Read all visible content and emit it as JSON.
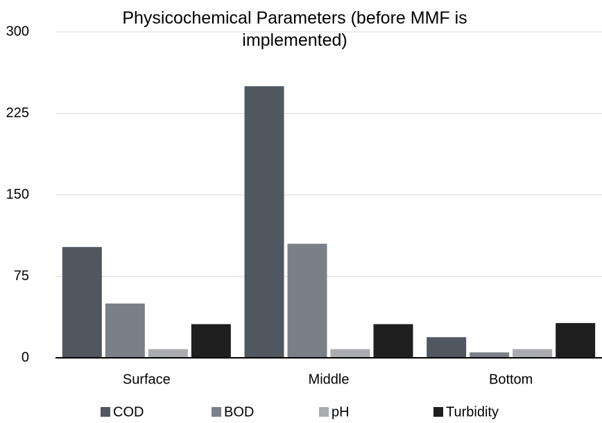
{
  "chart_data": {
    "type": "bar",
    "title": "Physicochemical Parameters (before MMF is implemented)",
    "categories": [
      "Surface",
      "Middle",
      "Bottom"
    ],
    "series": [
      {
        "name": "COD",
        "color": "#50575f",
        "values": [
          102,
          250,
          19
        ]
      },
      {
        "name": "BOD",
        "color": "#7a7f88",
        "values": [
          50,
          105,
          5
        ]
      },
      {
        "name": "pH",
        "color": "#a9abae",
        "values": [
          8,
          8,
          8
        ]
      },
      {
        "name": "Turbidity",
        "color": "#1f1f1f",
        "values": [
          31,
          31,
          32
        ]
      }
    ],
    "ylim": [
      0,
      300
    ],
    "yticks": [
      0,
      75,
      150,
      225,
      300
    ],
    "grid": true,
    "legend": "bottom"
  }
}
